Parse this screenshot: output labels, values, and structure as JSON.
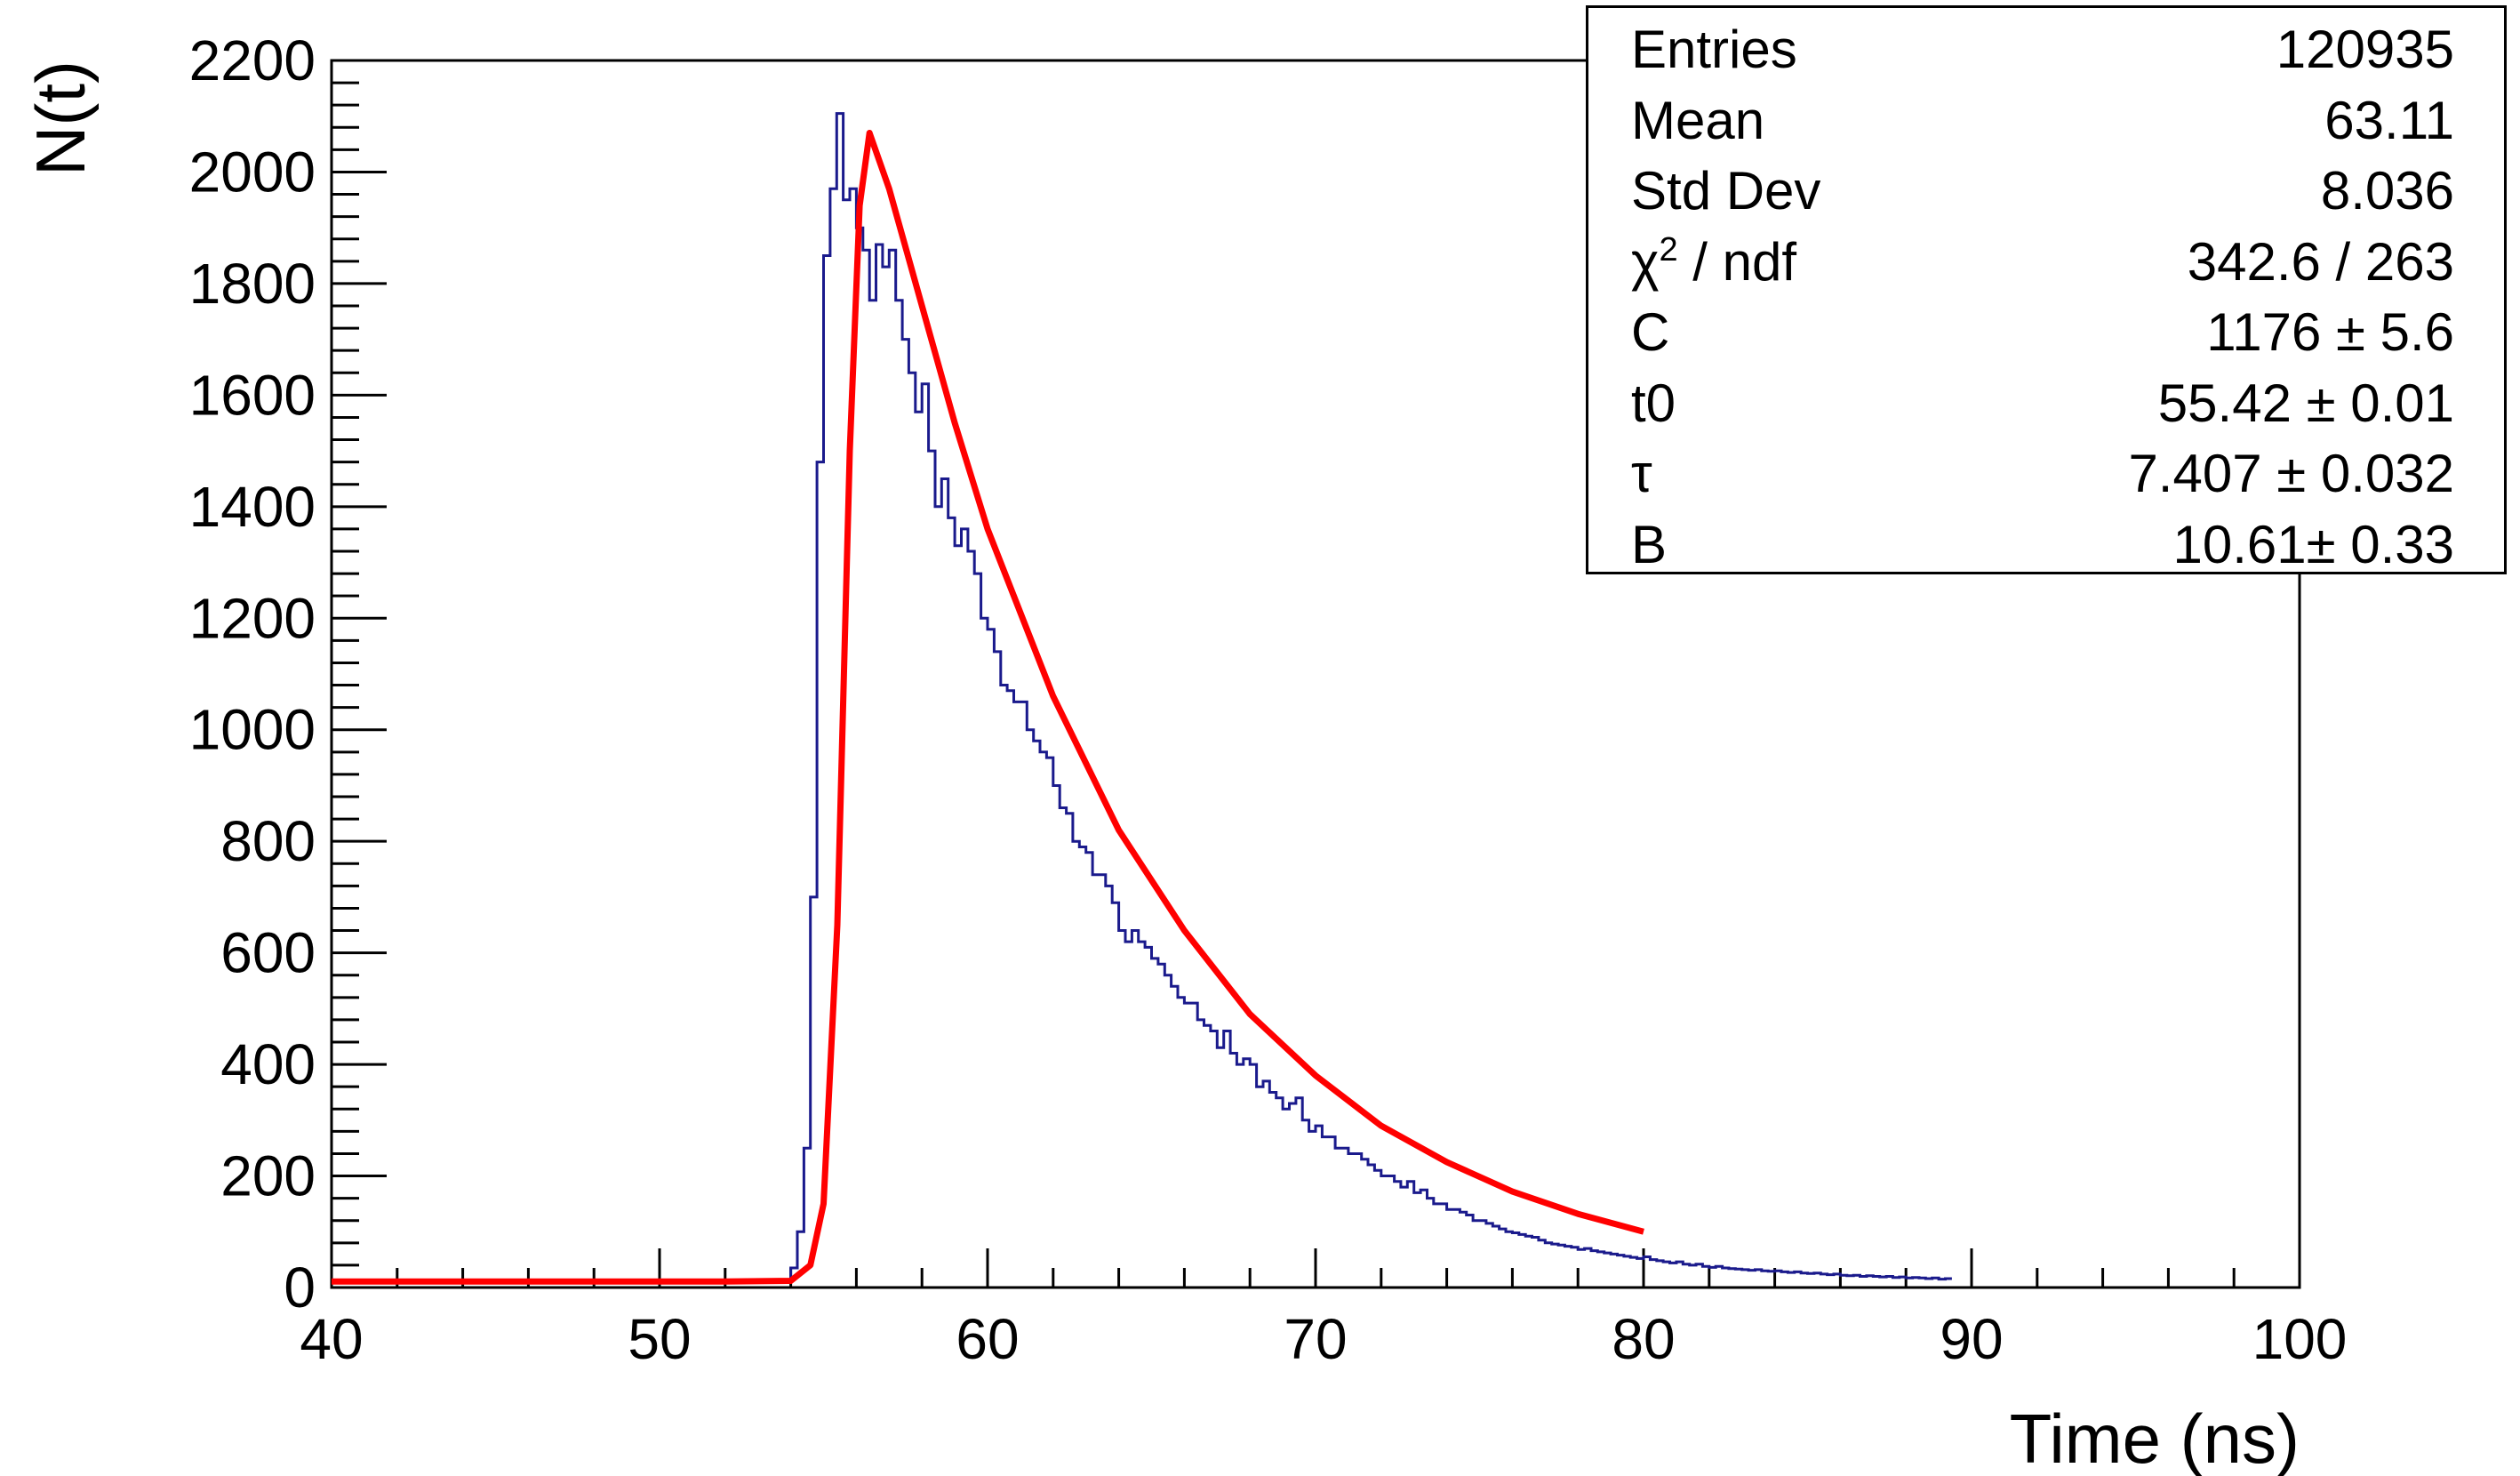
{
  "chart_data": {
    "type": "histogram",
    "xlabel": "Time (ns)",
    "ylabel": "N(t)",
    "xlim": [
      40,
      100
    ],
    "ylim": [
      0,
      2200
    ],
    "x_ticks": [
      "40",
      "50",
      "60",
      "70",
      "80",
      "90",
      "100"
    ],
    "y_ticks": [
      "0",
      "200",
      "400",
      "600",
      "800",
      "1000",
      "1200",
      "1400",
      "1600",
      "1800",
      "2000",
      "2200"
    ],
    "grid": false,
    "colors": {
      "histogram": "#1a1a8c",
      "fit": "#ff0000"
    },
    "series": [
      {
        "kind": "histogram-step",
        "bin_width": 0.2,
        "x_start": 40,
        "values": [
          10,
          11,
          9,
          12,
          10,
          11,
          10,
          12,
          9,
          11,
          10,
          10,
          11,
          9,
          12,
          10,
          11,
          10,
          9,
          11,
          10,
          12,
          10,
          11,
          9,
          10,
          11,
          10,
          12,
          10,
          11,
          9,
          10,
          11,
          12,
          10,
          9,
          11,
          10,
          11,
          10,
          12,
          9,
          11,
          10,
          10,
          11,
          9,
          12,
          10,
          11,
          10,
          9,
          11,
          10,
          12,
          10,
          11,
          9,
          10,
          11,
          10,
          12,
          10,
          11,
          9,
          10,
          11,
          10,
          12,
          35,
          100,
          250,
          700,
          1480,
          1850,
          1970,
          2105,
          1950,
          1970,
          1900,
          1860,
          1770,
          1870,
          1830,
          1860,
          1770,
          1700,
          1640,
          1570,
          1620,
          1500,
          1400,
          1450,
          1380,
          1330,
          1360,
          1320,
          1280,
          1200,
          1180,
          1140,
          1080,
          1070,
          1050,
          1050,
          1000,
          980,
          960,
          950,
          900,
          860,
          850,
          800,
          790,
          780,
          740,
          740,
          720,
          690,
          640,
          620,
          640,
          620,
          610,
          590,
          580,
          560,
          540,
          520,
          510,
          510,
          480,
          470,
          460,
          430,
          460,
          420,
          400,
          410,
          400,
          360,
          370,
          350,
          340,
          320,
          330,
          340,
          300,
          280,
          290,
          270,
          270,
          250,
          250,
          240,
          240,
          230,
          220,
          210,
          200,
          200,
          190,
          180,
          190,
          170,
          175,
          160,
          150,
          150,
          140,
          140,
          135,
          130,
          120,
          120,
          115,
          110,
          105,
          100,
          98,
          95,
          92,
          90,
          85,
          80,
          78,
          76,
          74,
          72,
          68,
          70,
          66,
          64,
          62,
          60,
          58,
          56,
          54,
          52,
          55,
          50,
          48,
          46,
          44,
          46,
          42,
          40,
          42,
          38,
          36,
          38,
          35,
          34,
          33,
          32,
          31,
          32,
          30,
          29,
          30,
          28,
          27,
          28,
          26,
          25,
          26,
          24,
          23,
          24,
          22,
          21,
          22,
          20,
          21,
          20,
          19,
          20,
          18,
          19,
          17,
          18,
          17,
          16,
          17,
          15,
          16
        ]
      },
      {
        "kind": "fit",
        "name": "fit",
        "x": [
          40,
          52,
          54,
          54.6,
          55.0,
          55.42,
          55.8,
          56.1,
          56.4,
          57,
          58,
          59,
          60,
          62,
          64,
          66,
          68,
          70,
          72,
          74,
          76,
          78,
          80
        ],
        "y": [
          10.61,
          10.61,
          12,
          40,
          150,
          650,
          1500,
          1940,
          2070,
          1970,
          1760,
          1550,
          1360,
          1060,
          820,
          640,
          490,
          380,
          290,
          225,
          172,
          132,
          100
        ]
      }
    ]
  },
  "stats": {
    "rows": [
      {
        "label": "Entries",
        "value": "120935"
      },
      {
        "label": "Mean",
        "value": "63.11"
      },
      {
        "label": "Std Dev",
        "value": "8.036"
      },
      {
        "label": "χ",
        "label_sup": "2",
        "label_rest": " / ndf",
        "value": "342.6 / 263"
      },
      {
        "label": "C",
        "value": "1176 ± 5.6"
      },
      {
        "label": "t0",
        "value": "55.42 ± 0.01"
      },
      {
        "label": "τ",
        "value": "7.407 ± 0.032"
      },
      {
        "label": "B",
        "value": "10.61± 0.33"
      }
    ]
  }
}
